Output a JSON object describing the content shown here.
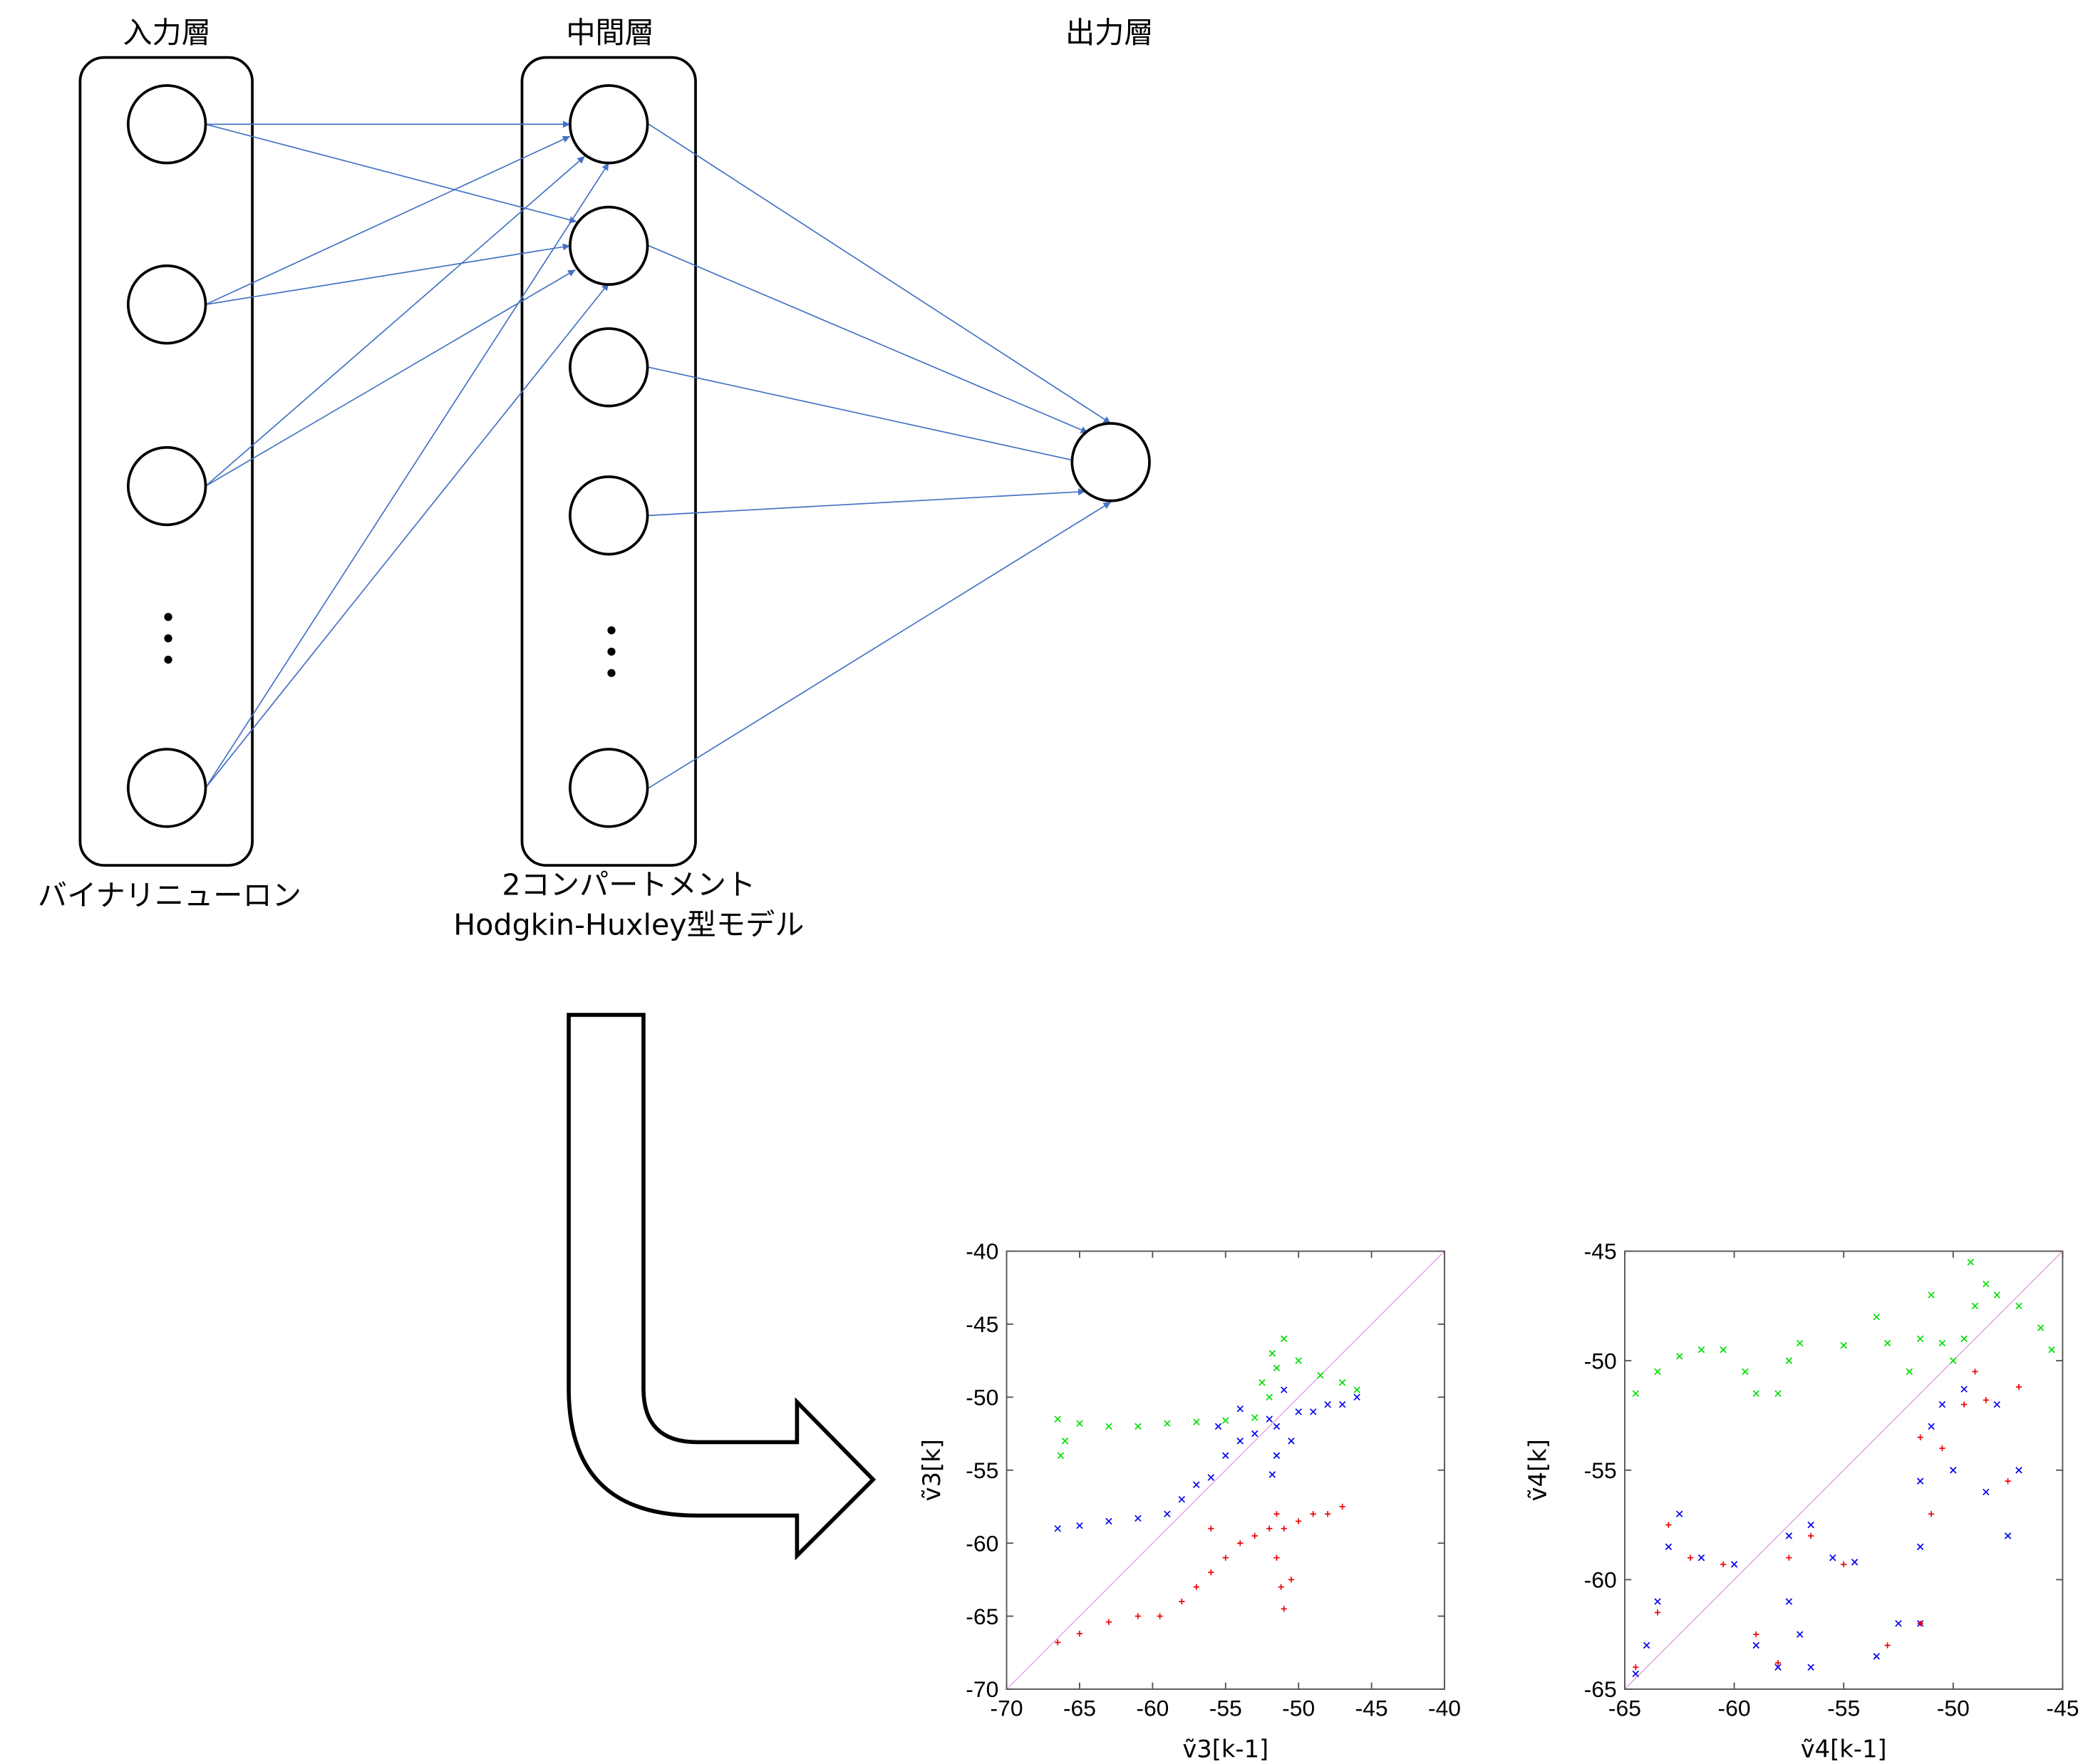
{
  "network": {
    "input_title": "入力層",
    "hidden_title": "中間層",
    "output_title": "出力層",
    "input_caption": "バイナリニューロン",
    "hidden_caption_line1": "2コンパートメント",
    "hidden_caption_line2": "Hodgkin-Huxley型モデル",
    "edge_color": "#4472C4"
  },
  "chart_data": [
    {
      "type": "scatter",
      "xlabel": "ṽ3[k-1]",
      "ylabel": "ṽ3[k]",
      "xlim": [
        -70,
        -40
      ],
      "ylim": [
        -70,
        -40
      ],
      "xticks": [
        "-70",
        "-65",
        "-60",
        "-55",
        "-50",
        "-45",
        "-40"
      ],
      "yticks": [
        "-40",
        "-45",
        "-50",
        "-55",
        "-60",
        "-65",
        "-70"
      ],
      "reference_line": "y = x",
      "series": [
        {
          "color": "#00dd00",
          "marker": "x",
          "values": [
            [
              -66.5,
              -51.5
            ],
            [
              -65,
              -51.8
            ],
            [
              -63,
              -52
            ],
            [
              -61,
              -52
            ],
            [
              -59,
              -51.8
            ],
            [
              -57,
              -51.7
            ],
            [
              -55,
              -51.6
            ],
            [
              -53,
              -51.4
            ],
            [
              -52,
              -50
            ],
            [
              -51.5,
              -48
            ],
            [
              -51,
              -46
            ],
            [
              -50,
              -47.5
            ],
            [
              -48.5,
              -48.5
            ],
            [
              -47,
              -49
            ],
            [
              -46,
              -49.5
            ],
            [
              -66,
              -53
            ],
            [
              -66.3,
              -54
            ],
            [
              -51.8,
              -47
            ],
            [
              -52.5,
              -49
            ]
          ]
        },
        {
          "color": "#0000ee",
          "marker": "x",
          "values": [
            [
              -66.5,
              -59
            ],
            [
              -65,
              -58.8
            ],
            [
              -63,
              -58.5
            ],
            [
              -61,
              -58.3
            ],
            [
              -59,
              -58
            ],
            [
              -58,
              -57
            ],
            [
              -57,
              -56
            ],
            [
              -56,
              -55.5
            ],
            [
              -55,
              -54
            ],
            [
              -54,
              -53
            ],
            [
              -53,
              -52.5
            ],
            [
              -52,
              -51.5
            ],
            [
              -51.5,
              -54
            ],
            [
              -51.5,
              -52
            ],
            [
              -51,
              -49.5
            ],
            [
              -50,
              -51
            ],
            [
              -49,
              -51
            ],
            [
              -48,
              -50.5
            ],
            [
              -47,
              -50.5
            ],
            [
              -46,
              -50
            ],
            [
              -55.5,
              -52
            ],
            [
              -54,
              -50.8
            ],
            [
              -51.8,
              -55.3
            ],
            [
              -50.5,
              -53
            ]
          ]
        },
        {
          "color": "#ee0000",
          "marker": "+",
          "values": [
            [
              -66.5,
              -66.8
            ],
            [
              -65,
              -66.2
            ],
            [
              -63,
              -65.4
            ],
            [
              -61,
              -65
            ],
            [
              -59.5,
              -65
            ],
            [
              -58,
              -64
            ],
            [
              -57,
              -63
            ],
            [
              -56,
              -62
            ],
            [
              -55,
              -61
            ],
            [
              -54,
              -60
            ],
            [
              -53,
              -59.5
            ],
            [
              -52,
              -59
            ],
            [
              -51.5,
              -58
            ],
            [
              -51,
              -59
            ],
            [
              -50,
              -58.5
            ],
            [
              -49,
              -58
            ],
            [
              -48,
              -58
            ],
            [
              -47,
              -57.5
            ],
            [
              -51.5,
              -61
            ],
            [
              -51.2,
              -63
            ],
            [
              -51,
              -64.5
            ],
            [
              -50.5,
              -62.5
            ],
            [
              -56,
              -59
            ]
          ]
        }
      ]
    },
    {
      "type": "scatter",
      "xlabel": "ṽ4[k-1]",
      "ylabel": "ṽ4[k]",
      "xlim": [
        -65,
        -45
      ],
      "ylim": [
        -65,
        -45
      ],
      "xticks": [
        "-65",
        "-60",
        "-55",
        "-50",
        "-45"
      ],
      "yticks": [
        "-45",
        "-50",
        "-55",
        "-60",
        "-65"
      ],
      "reference_line": "y = x",
      "series": [
        {
          "color": "#00dd00",
          "marker": "x",
          "values": [
            [
              -64.5,
              -51.5
            ],
            [
              -63.5,
              -50.5
            ],
            [
              -62.5,
              -49.8
            ],
            [
              -61.5,
              -49.5
            ],
            [
              -60.5,
              -49.5
            ],
            [
              -59.5,
              -50.5
            ],
            [
              -59,
              -51.5
            ],
            [
              -58,
              -51.5
            ],
            [
              -57.5,
              -50
            ],
            [
              -57,
              -49.2
            ],
            [
              -55,
              -49.3
            ],
            [
              -53,
              -49.2
            ],
            [
              -51.5,
              -49
            ],
            [
              -50.5,
              -49.2
            ],
            [
              -50,
              -50
            ],
            [
              -49.5,
              -49
            ],
            [
              -49,
              -47.5
            ],
            [
              -48.5,
              -46.5
            ],
            [
              -48,
              -47
            ],
            [
              -47,
              -47.5
            ],
            [
              -46,
              -48.5
            ],
            [
              -45.5,
              -49.5
            ],
            [
              -51,
              -47
            ],
            [
              -49.2,
              -45.5
            ],
            [
              -52,
              -50.5
            ],
            [
              -53.5,
              -48
            ]
          ]
        },
        {
          "color": "#0000ee",
          "marker": "x",
          "values": [
            [
              -64.5,
              -64.3
            ],
            [
              -64,
              -63
            ],
            [
              -63.5,
              -61
            ],
            [
              -63,
              -58.5
            ],
            [
              -62.5,
              -57
            ],
            [
              -61.5,
              -59
            ],
            [
              -60,
              -59.3
            ],
            [
              -59,
              -63
            ],
            [
              -58,
              -64
            ],
            [
              -57.5,
              -58
            ],
            [
              -57.5,
              -61
            ],
            [
              -57,
              -62.5
            ],
            [
              -56.5,
              -64
            ],
            [
              -56.5,
              -57.5
            ],
            [
              -55.5,
              -59
            ],
            [
              -54.5,
              -59.2
            ],
            [
              -53.5,
              -63.5
            ],
            [
              -52.5,
              -62
            ],
            [
              -51.5,
              -58.5
            ],
            [
              -51.5,
              -55.5
            ],
            [
              -51,
              -53
            ],
            [
              -50.5,
              -52
            ],
            [
              -50,
              -55
            ],
            [
              -49.5,
              -51.3
            ],
            [
              -48.5,
              -56
            ],
            [
              -47.5,
              -58
            ],
            [
              -48,
              -52
            ],
            [
              -47,
              -55
            ],
            [
              -51.5,
              -62
            ]
          ]
        },
        {
          "color": "#ee0000",
          "marker": "+",
          "values": [
            [
              -64.5,
              -64
            ],
            [
              -63.5,
              -61.5
            ],
            [
              -63,
              -57.5
            ],
            [
              -62,
              -59
            ],
            [
              -60.5,
              -59.3
            ],
            [
              -59,
              -62.5
            ],
            [
              -58,
              -63.8
            ],
            [
              -57.5,
              -59
            ],
            [
              -56.5,
              -58
            ],
            [
              -55,
              -59.3
            ],
            [
              -53,
              -63
            ],
            [
              -51.5,
              -62
            ],
            [
              -51,
              -57
            ],
            [
              -50.5,
              -54
            ],
            [
              -49.5,
              -52
            ],
            [
              -49,
              -50.5
            ],
            [
              -48.5,
              -51.8
            ],
            [
              -47.5,
              -55.5
            ],
            [
              -47,
              -51.2
            ],
            [
              -51.5,
              -53.5
            ]
          ]
        }
      ]
    }
  ]
}
